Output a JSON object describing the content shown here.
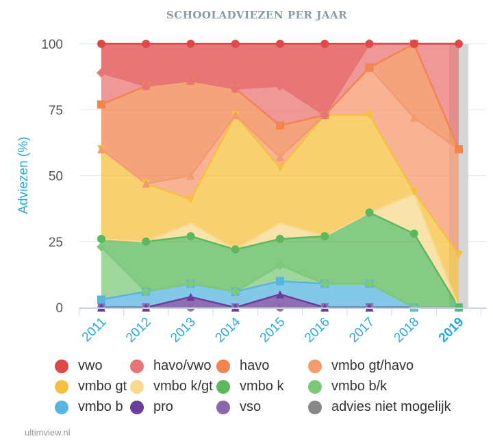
{
  "chart_data": {
    "type": "area",
    "stacked": true,
    "title": "SCHOOLADVIEZEN PER JAAR",
    "xlabel": "",
    "ylabel": "Adviezen (%)",
    "ylim": [
      0,
      100
    ],
    "yticks": [
      "0",
      "25",
      "50",
      "75",
      "100"
    ],
    "categories": [
      "2011",
      "2012",
      "2013",
      "2014",
      "2015",
      "2016",
      "2017",
      "2018",
      "2019"
    ],
    "highlighted_category": "2019",
    "legend_position": "bottom",
    "series": [
      {
        "name": "vwo",
        "color": "#e04848",
        "marker": "circle",
        "values": [
          11,
          16,
          14,
          17,
          16,
          27,
          0,
          0,
          0
        ]
      },
      {
        "name": "havo/vwo",
        "color": "#e87575",
        "marker": "diamond",
        "values": [
          12,
          0,
          0,
          0,
          15,
          0,
          9,
          0,
          40
        ]
      },
      {
        "name": "havo",
        "color": "#f28450",
        "marker": "square",
        "values": [
          17,
          37,
          36,
          10,
          12,
          0,
          0,
          28,
          0
        ]
      },
      {
        "name": "vmbo gt/havo",
        "color": "#f49a6f",
        "marker": "triangle",
        "values": [
          0,
          0,
          9,
          0,
          4,
          0,
          18,
          28,
          40
        ]
      },
      {
        "name": "vmbo gt",
        "color": "#f5c040",
        "marker": "triangle-down",
        "values": [
          34,
          22,
          9,
          51,
          21,
          46,
          37,
          1,
          20
        ]
      },
      {
        "name": "vmbo k/gt",
        "color": "#f8d98e",
        "marker": "none",
        "values": [
          0,
          0,
          5,
          0,
          6,
          0,
          0,
          15,
          0
        ]
      },
      {
        "name": "vmbo k",
        "color": "#5cb85c",
        "marker": "circle",
        "values": [
          3,
          19,
          18,
          16,
          10,
          18,
          27,
          28,
          0
        ]
      },
      {
        "name": "vmbo b/k",
        "color": "#7ec87a",
        "marker": "diamond",
        "values": [
          20,
          0,
          0,
          0,
          6,
          0,
          0,
          0,
          0
        ]
      },
      {
        "name": "vmbo b",
        "color": "#5ab4e2",
        "marker": "square",
        "values": [
          3,
          6,
          5,
          6,
          5,
          9,
          9,
          0,
          0
        ]
      },
      {
        "name": "pro",
        "color": "#6a3d9a",
        "marker": "triangle",
        "values": [
          0,
          0,
          4,
          0,
          5,
          0,
          0,
          0,
          0
        ]
      },
      {
        "name": "vso",
        "color": "#8c67b0",
        "marker": "triangle-down",
        "values": [
          0,
          0,
          0,
          0,
          0,
          0,
          0,
          0,
          0
        ]
      },
      {
        "name": "advies niet mogelijk",
        "color": "#888888",
        "marker": "circle",
        "values": [
          0,
          0,
          0,
          0,
          0,
          0,
          0,
          0,
          0
        ]
      }
    ]
  },
  "credit": "ultimview.nl"
}
